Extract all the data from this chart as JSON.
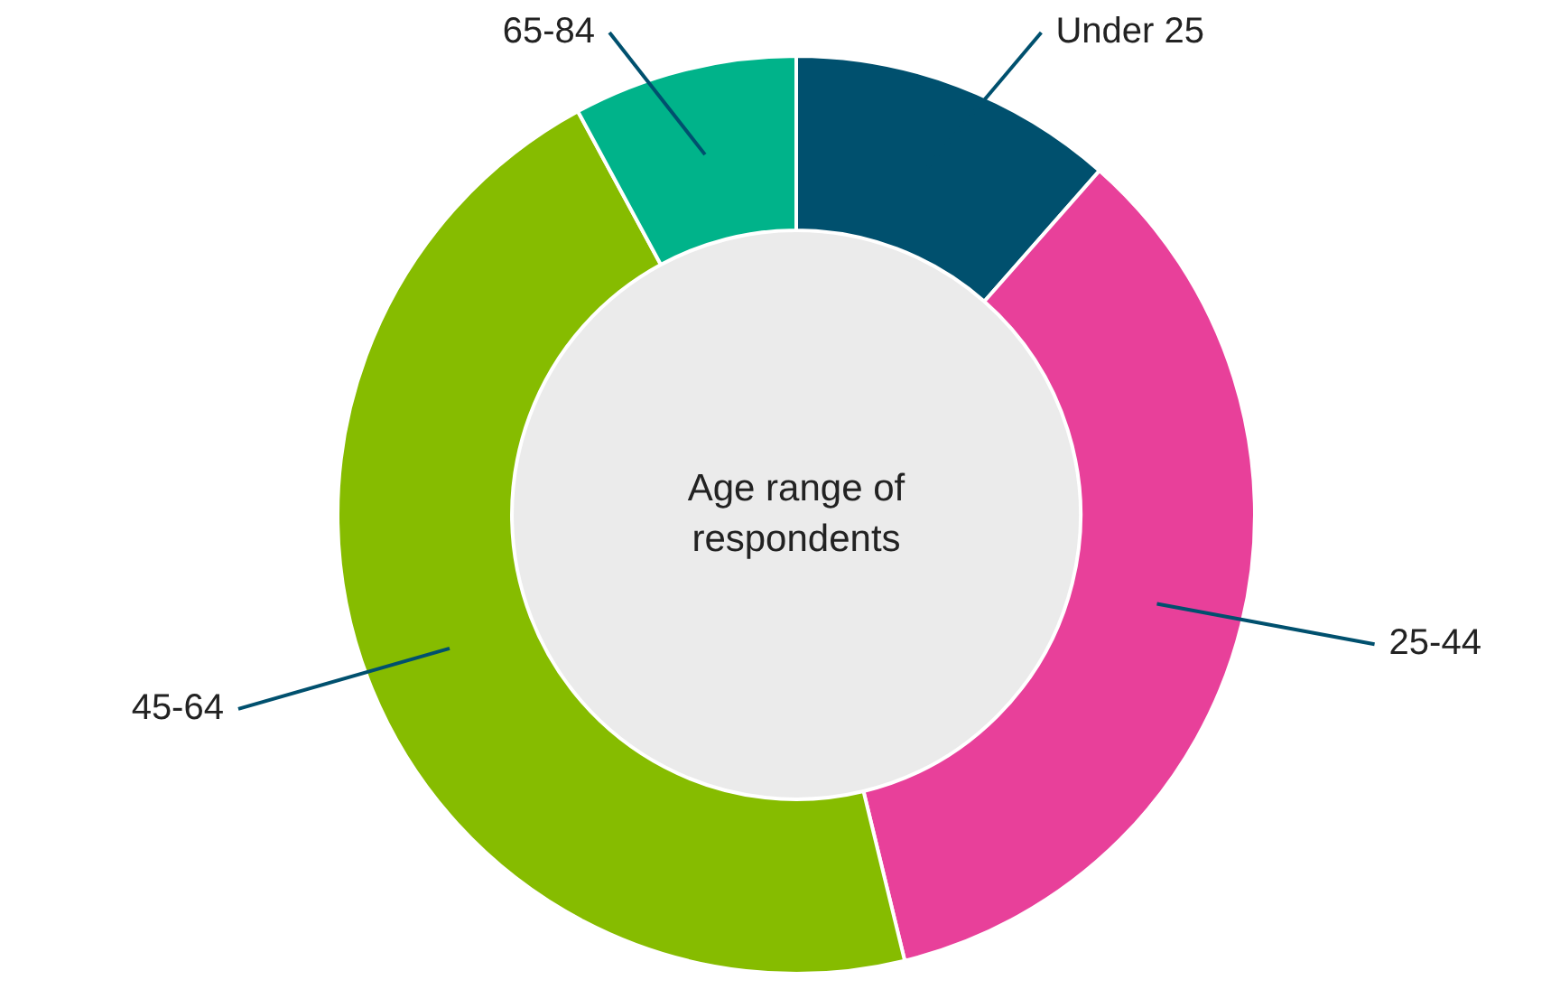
{
  "chart_data": {
    "type": "donut",
    "title": "Age range of respondents",
    "categories": [
      "Under 25",
      "25-44",
      "45-64",
      "65-84"
    ],
    "values": [
      11.5,
      34.7,
      45.9,
      7.9
    ],
    "colors": [
      "#00506e",
      "#e8409a",
      "#86bc00",
      "#00b38a"
    ],
    "legend": false
  }
}
